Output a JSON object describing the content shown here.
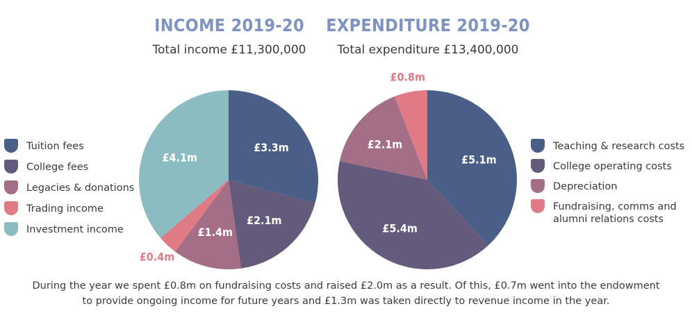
{
  "chart_data": [
    {
      "type": "pie",
      "title": "INCOME 2019-20",
      "subtitle": "Total income £11,300,000",
      "categories": [
        "Tuition fees",
        "College fees",
        "Legacies & donations",
        "Trading income",
        "Investment income"
      ],
      "values": [
        3.3,
        2.1,
        1.4,
        0.4,
        4.1
      ],
      "data_labels": [
        "£3.3m",
        "£2.1m",
        "£1.4m",
        "£0.4m",
        "£4.1m"
      ],
      "colors": [
        "#4a5f88",
        "#645a7c",
        "#a46e87",
        "#e07a85",
        "#8bbcc1"
      ],
      "legend_placement": "left"
    },
    {
      "type": "pie",
      "title": "EXPENDITURE 2019-20",
      "subtitle": "Total expenditure £13,400,000",
      "categories": [
        "Teaching & research costs",
        "College operating costs",
        "Depreciation",
        "Fundraising, comms and alumni relations costs"
      ],
      "values": [
        5.1,
        5.4,
        2.1,
        0.8
      ],
      "data_labels": [
        "£5.1m",
        "£5.4m",
        "£2.1m",
        "£0.8m"
      ],
      "colors": [
        "#4a5f88",
        "#645a7c",
        "#a46e87",
        "#e07a85"
      ],
      "legend_placement": "right"
    }
  ],
  "note": {
    "line1": "During the year we spent £0.8m on fundraising costs and raised £2.0m as a result. Of this, £0.7m went into the endowment",
    "line2": "to provide ongoing income for future years and £1.3m was taken directly to revenue income in the year."
  },
  "label_colors": {
    "inside": "#ffffff",
    "outside": "#e07a85"
  }
}
